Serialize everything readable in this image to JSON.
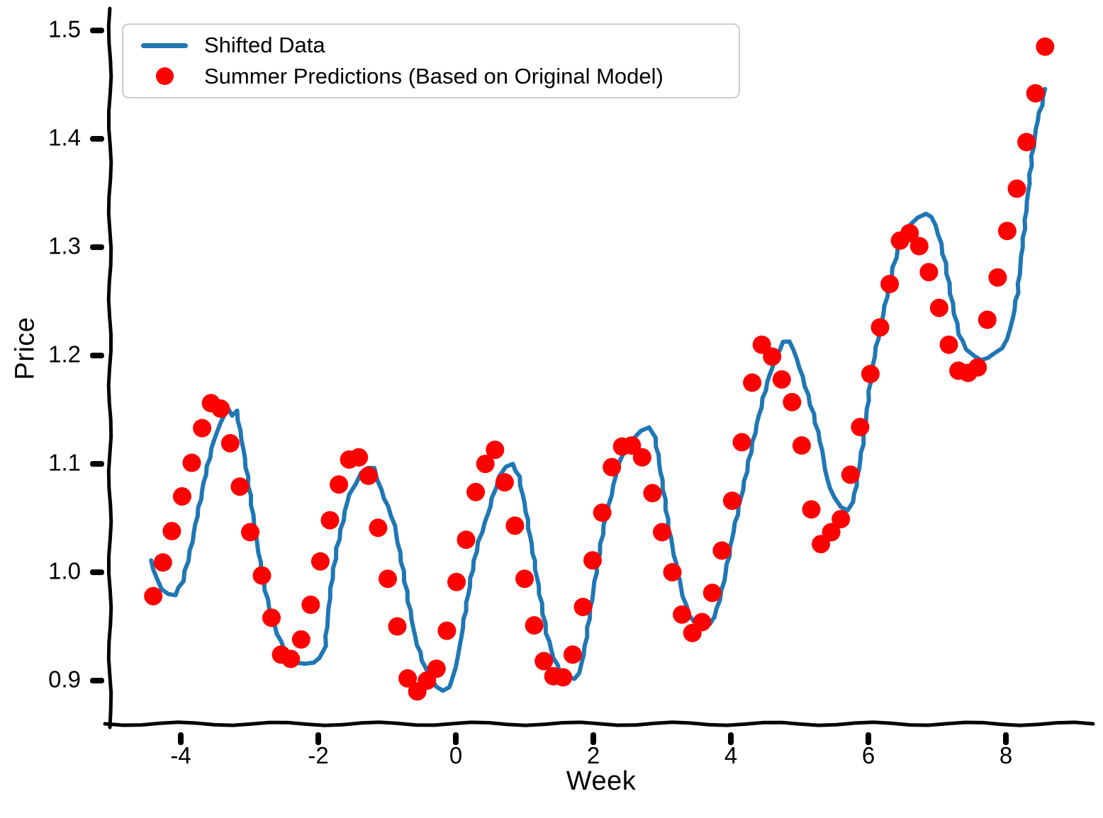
{
  "chart_data": {
    "type": "line",
    "style": "xkcd-hand-drawn",
    "title": "",
    "xlabel": "Week",
    "ylabel": "Price",
    "xlim": [
      -5.0,
      9.2
    ],
    "ylim": [
      0.86,
      1.52
    ],
    "grid": false,
    "x_ticks": {
      "values": [
        -4,
        -2,
        0,
        2,
        4,
        6,
        8
      ],
      "labels": [
        "-4",
        "-2",
        "0",
        "2",
        "4",
        "6",
        "8"
      ]
    },
    "y_ticks": {
      "values": [
        0.9,
        1.0,
        1.1,
        1.2,
        1.3,
        1.4,
        1.5
      ],
      "labels": [
        "0.9",
        "1.0",
        "1.1",
        "1.2",
        "1.3",
        "1.4",
        "1.5"
      ]
    },
    "legend": {
      "position": "upper left",
      "entries": [
        {
          "label": "Shifted Data",
          "marker": "line",
          "color": "#1f77b4"
        },
        {
          "label": "Summer Predictions (Based on Original Model)",
          "marker": "dot",
          "color": "#ff0000"
        }
      ]
    },
    "series": [
      {
        "name": "Shifted Data",
        "type": "line",
        "color": "#1f77b4",
        "line_width": 6,
        "points": [
          [
            -4.43,
            1.011
          ],
          [
            -4.36,
            0.995
          ],
          [
            -4.28,
            0.984
          ],
          [
            -4.18,
            0.98
          ],
          [
            -4.08,
            0.979
          ],
          [
            -3.97,
            0.992
          ],
          [
            -3.86,
            1.02
          ],
          [
            -3.76,
            1.052
          ],
          [
            -3.64,
            1.09
          ],
          [
            -3.52,
            1.122
          ],
          [
            -3.42,
            1.138
          ],
          [
            -3.33,
            1.152
          ],
          [
            -3.26,
            1.145
          ],
          [
            -3.19,
            1.149
          ],
          [
            -3.11,
            1.122
          ],
          [
            -3.01,
            1.08
          ],
          [
            -2.91,
            1.035
          ],
          [
            -2.8,
            0.992
          ],
          [
            -2.68,
            0.958
          ],
          [
            -2.55,
            0.936
          ],
          [
            -2.43,
            0.923
          ],
          [
            -2.31,
            0.917
          ],
          [
            -2.19,
            0.915
          ],
          [
            -2.07,
            0.917
          ],
          [
            -1.98,
            0.921
          ],
          [
            -1.9,
            0.932
          ],
          [
            -1.82,
            0.985
          ],
          [
            -1.73,
            1.022
          ],
          [
            -1.64,
            1.048
          ],
          [
            -1.55,
            1.072
          ],
          [
            -1.46,
            1.082
          ],
          [
            -1.37,
            1.091
          ],
          [
            -1.28,
            1.097
          ],
          [
            -1.19,
            1.096
          ],
          [
            -1.09,
            1.076
          ],
          [
            -0.99,
            1.061
          ],
          [
            -0.89,
            1.043
          ],
          [
            -0.79,
            1.01
          ],
          [
            -0.69,
            0.973
          ],
          [
            -0.59,
            0.94
          ],
          [
            -0.49,
            0.919
          ],
          [
            -0.39,
            0.905
          ],
          [
            -0.29,
            0.894
          ],
          [
            -0.19,
            0.891
          ],
          [
            -0.09,
            0.894
          ],
          [
            0.0,
            0.912
          ],
          [
            0.08,
            0.941
          ],
          [
            0.16,
            0.972
          ],
          [
            0.24,
            1.002
          ],
          [
            0.33,
            1.028
          ],
          [
            0.43,
            1.046
          ],
          [
            0.53,
            1.068
          ],
          [
            0.63,
            1.088
          ],
          [
            0.73,
            1.097
          ],
          [
            0.83,
            1.1
          ],
          [
            0.92,
            1.088
          ],
          [
            1.02,
            1.056
          ],
          [
            1.12,
            1.018
          ],
          [
            1.22,
            0.98
          ],
          [
            1.32,
            0.944
          ],
          [
            1.42,
            0.921
          ],
          [
            1.52,
            0.908
          ],
          [
            1.62,
            0.903
          ],
          [
            1.72,
            0.902
          ],
          [
            1.8,
            0.907
          ],
          [
            1.88,
            0.932
          ],
          [
            1.96,
            0.966
          ],
          [
            2.06,
            1.008
          ],
          [
            2.16,
            1.044
          ],
          [
            2.26,
            1.071
          ],
          [
            2.36,
            1.098
          ],
          [
            2.46,
            1.113
          ],
          [
            2.58,
            1.124
          ],
          [
            2.7,
            1.13
          ],
          [
            2.82,
            1.134
          ],
          [
            2.9,
            1.124
          ],
          [
            3.0,
            1.085
          ],
          [
            3.1,
            1.04
          ],
          [
            3.2,
            1.008
          ],
          [
            3.3,
            0.978
          ],
          [
            3.4,
            0.96
          ],
          [
            3.5,
            0.952
          ],
          [
            3.6,
            0.95
          ],
          [
            3.7,
            0.952
          ],
          [
            3.8,
            0.966
          ],
          [
            3.9,
            0.992
          ],
          [
            4.04,
            1.038
          ],
          [
            4.2,
            1.084
          ],
          [
            4.35,
            1.129
          ],
          [
            4.5,
            1.168
          ],
          [
            4.64,
            1.198
          ],
          [
            4.76,
            1.212
          ],
          [
            4.86,
            1.213
          ],
          [
            4.96,
            1.197
          ],
          [
            5.08,
            1.172
          ],
          [
            5.2,
            1.146
          ],
          [
            5.3,
            1.121
          ],
          [
            5.4,
            1.086
          ],
          [
            5.5,
            1.069
          ],
          [
            5.6,
            1.06
          ],
          [
            5.7,
            1.057
          ],
          [
            5.78,
            1.065
          ],
          [
            5.86,
            1.095
          ],
          [
            5.94,
            1.126
          ],
          [
            6.04,
            1.183
          ],
          [
            6.14,
            1.216
          ],
          [
            6.24,
            1.246
          ],
          [
            6.36,
            1.281
          ],
          [
            6.48,
            1.309
          ],
          [
            6.6,
            1.32
          ],
          [
            6.72,
            1.327
          ],
          [
            6.84,
            1.331
          ],
          [
            6.92,
            1.328
          ],
          [
            7.02,
            1.312
          ],
          [
            7.12,
            1.285
          ],
          [
            7.22,
            1.248
          ],
          [
            7.32,
            1.22
          ],
          [
            7.42,
            1.206
          ],
          [
            7.54,
            1.199
          ],
          [
            7.64,
            1.196
          ],
          [
            7.74,
            1.198
          ],
          [
            7.84,
            1.202
          ],
          [
            7.94,
            1.207
          ],
          [
            8.02,
            1.215
          ],
          [
            8.1,
            1.235
          ],
          [
            8.17,
            1.258
          ],
          [
            8.24,
            1.3
          ],
          [
            8.31,
            1.342
          ],
          [
            8.38,
            1.384
          ],
          [
            8.46,
            1.417
          ],
          [
            8.52,
            1.431
          ],
          [
            8.57,
            1.446
          ]
        ]
      },
      {
        "name": "Summer Predictions (Based on Original Model)",
        "type": "scatter",
        "color": "#ff0000",
        "marker_radius": 13,
        "points": [
          [
            -4.4,
            0.978
          ],
          [
            -4.26,
            1.009
          ],
          [
            -4.13,
            1.038
          ],
          [
            -3.98,
            1.07
          ],
          [
            -3.84,
            1.101
          ],
          [
            -3.69,
            1.133
          ],
          [
            -3.56,
            1.156
          ],
          [
            -3.42,
            1.151
          ],
          [
            -3.28,
            1.119
          ],
          [
            -3.14,
            1.079
          ],
          [
            -2.99,
            1.037
          ],
          [
            -2.82,
            0.997
          ],
          [
            -2.68,
            0.958
          ],
          [
            -2.54,
            0.924
          ],
          [
            -2.4,
            0.92
          ],
          [
            -2.25,
            0.938
          ],
          [
            -2.11,
            0.97
          ],
          [
            -1.97,
            1.01
          ],
          [
            -1.83,
            1.048
          ],
          [
            -1.7,
            1.081
          ],
          [
            -1.55,
            1.104
          ],
          [
            -1.41,
            1.106
          ],
          [
            -1.27,
            1.089
          ],
          [
            -1.13,
            1.041
          ],
          [
            -0.99,
            0.994
          ],
          [
            -0.85,
            0.95
          ],
          [
            -0.7,
            0.902
          ],
          [
            -0.56,
            0.89
          ],
          [
            -0.42,
            0.9
          ],
          [
            -0.28,
            0.911
          ],
          [
            -0.13,
            0.946
          ],
          [
            0.01,
            0.991
          ],
          [
            0.15,
            1.03
          ],
          [
            0.29,
            1.074
          ],
          [
            0.43,
            1.1
          ],
          [
            0.57,
            1.113
          ],
          [
            0.71,
            1.083
          ],
          [
            0.86,
            1.043
          ],
          [
            1.0,
            0.994
          ],
          [
            1.14,
            0.951
          ],
          [
            1.28,
            0.918
          ],
          [
            1.42,
            0.904
          ],
          [
            1.56,
            0.903
          ],
          [
            1.7,
            0.924
          ],
          [
            1.85,
            0.968
          ],
          [
            1.99,
            1.011
          ],
          [
            2.13,
            1.055
          ],
          [
            2.27,
            1.097
          ],
          [
            2.42,
            1.116
          ],
          [
            2.56,
            1.117
          ],
          [
            2.71,
            1.106
          ],
          [
            2.86,
            1.073
          ],
          [
            3.0,
            1.037
          ],
          [
            3.15,
            1.0
          ],
          [
            3.29,
            0.961
          ],
          [
            3.44,
            0.944
          ],
          [
            3.58,
            0.954
          ],
          [
            3.73,
            0.981
          ],
          [
            3.87,
            1.02
          ],
          [
            4.02,
            1.066
          ],
          [
            4.16,
            1.12
          ],
          [
            4.31,
            1.175
          ],
          [
            4.45,
            1.21
          ],
          [
            4.6,
            1.199
          ],
          [
            4.74,
            1.178
          ],
          [
            4.89,
            1.157
          ],
          [
            5.03,
            1.117
          ],
          [
            5.17,
            1.058
          ],
          [
            5.31,
            1.026
          ],
          [
            5.46,
            1.037
          ],
          [
            5.6,
            1.049
          ],
          [
            5.74,
            1.09
          ],
          [
            5.88,
            1.134
          ],
          [
            6.03,
            1.183
          ],
          [
            6.17,
            1.226
          ],
          [
            6.31,
            1.266
          ],
          [
            6.46,
            1.306
          ],
          [
            6.6,
            1.313
          ],
          [
            6.74,
            1.301
          ],
          [
            6.88,
            1.277
          ],
          [
            7.03,
            1.244
          ],
          [
            7.17,
            1.21
          ],
          [
            7.31,
            1.186
          ],
          [
            7.45,
            1.184
          ],
          [
            7.59,
            1.189
          ],
          [
            7.73,
            1.233
          ],
          [
            7.88,
            1.272
          ],
          [
            8.02,
            1.315
          ],
          [
            8.16,
            1.354
          ],
          [
            8.3,
            1.397
          ],
          [
            8.43,
            1.442
          ],
          [
            8.57,
            1.485
          ]
        ]
      }
    ]
  }
}
